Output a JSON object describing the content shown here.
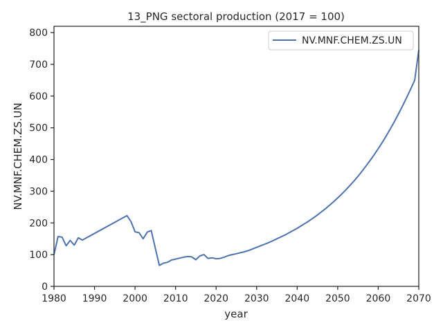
{
  "chart_data": {
    "type": "line",
    "title": "13_PNG sectoral production (2017 = 100)",
    "xlabel": "year",
    "ylabel": "NV.MNF.CHEM.ZS.UN",
    "xlim": [
      1980,
      2070
    ],
    "ylim": [
      0,
      820
    ],
    "xticks": [
      1980,
      1990,
      2000,
      2010,
      2020,
      2030,
      2040,
      2050,
      2060,
      2070
    ],
    "yticks": [
      0,
      100,
      200,
      300,
      400,
      500,
      600,
      700,
      800
    ],
    "grid": false,
    "legend_position": "top-right",
    "series": [
      {
        "name": "NV.MNF.CHEM.ZS.UN",
        "color": "#4c72b0",
        "x": [
          1980,
          1981,
          1982,
          1983,
          1984,
          1985,
          1986,
          1987,
          1998,
          1999,
          2000,
          2001,
          2002,
          2003,
          2004,
          2005,
          2006,
          2007,
          2008,
          2009,
          2010,
          2011,
          2012,
          2013,
          2014,
          2015,
          2016,
          2017,
          2018,
          2019,
          2020,
          2021,
          2022,
          2023,
          2024,
          2025,
          2026,
          2027,
          2028,
          2029,
          2030,
          2031,
          2032,
          2033,
          2034,
          2035,
          2036,
          2037,
          2038,
          2039,
          2040,
          2041,
          2042,
          2043,
          2044,
          2045,
          2046,
          2047,
          2048,
          2049,
          2050,
          2051,
          2052,
          2053,
          2054,
          2055,
          2056,
          2057,
          2058,
          2059,
          2060,
          2061,
          2062,
          2063,
          2064,
          2065,
          2066,
          2067,
          2068,
          2069,
          2070
        ],
        "y": [
          100,
          157,
          155,
          128,
          145,
          130,
          153,
          146,
          223,
          204,
          172,
          169,
          150,
          171,
          176,
          120,
          66,
          73,
          76,
          83,
          86,
          89,
          92,
          94,
          93,
          84,
          96,
          100,
          88,
          90,
          87,
          88,
          92,
          97,
          100,
          103,
          106,
          109,
          113,
          118,
          123,
          128,
          133,
          138,
          144,
          150,
          156,
          162,
          169,
          176,
          183,
          191,
          199,
          207,
          216,
          225,
          235,
          245,
          256,
          267,
          279,
          291,
          304,
          318,
          332,
          347,
          363,
          380,
          397,
          415,
          434,
          454,
          475,
          497,
          520,
          544,
          569,
          595,
          622,
          650,
          745
        ]
      }
    ]
  }
}
